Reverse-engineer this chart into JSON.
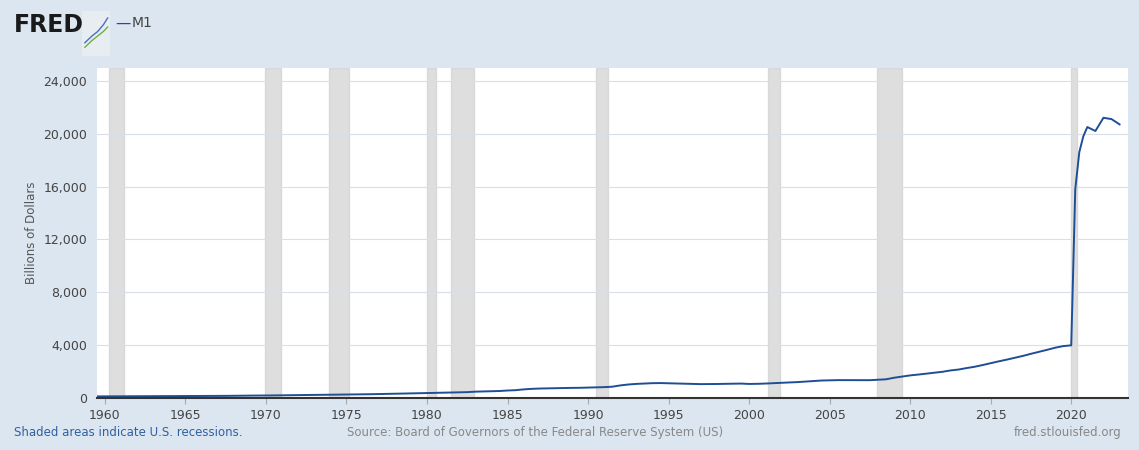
{
  "title": "M1",
  "fred_label": "FRED",
  "ylabel": "Billions of Dollars",
  "background_color": "#dce6f0",
  "plot_bg_color": "#ffffff",
  "line_color": "#1f4e96",
  "line_width": 1.4,
  "recession_color": "#d0d0d0",
  "recession_alpha": 0.7,
  "ylim": [
    0,
    25000
  ],
  "yticks": [
    0,
    4000,
    8000,
    12000,
    16000,
    20000,
    24000
  ],
  "xlim_start": 1959.5,
  "xlim_end": 2023.5,
  "xticks": [
    1960,
    1965,
    1970,
    1975,
    1980,
    1985,
    1990,
    1995,
    2000,
    2005,
    2010,
    2015,
    2020
  ],
  "footer_left": "Shaded areas indicate U.S. recessions.",
  "footer_center": "Source: Board of Governors of the Federal Reserve System (US)",
  "footer_right": "fred.stlouisfed.org",
  "footer_left_color": "#3060a0",
  "footer_center_color": "#888888",
  "footer_right_color": "#888888",
  "recession_periods": [
    [
      1960.25,
      1961.17
    ],
    [
      1969.92,
      1970.92
    ],
    [
      1973.92,
      1975.17
    ],
    [
      1980.0,
      1980.58
    ],
    [
      1981.5,
      1982.92
    ],
    [
      1990.5,
      1991.25
    ],
    [
      2001.17,
      2001.92
    ],
    [
      2007.92,
      2009.5
    ],
    [
      2020.0,
      2020.33
    ]
  ],
  "m1_data": {
    "years": [
      1959.0,
      1959.5,
      1960.0,
      1960.5,
      1961.0,
      1961.5,
      1962.0,
      1962.5,
      1963.0,
      1963.5,
      1964.0,
      1964.5,
      1965.0,
      1965.5,
      1966.0,
      1966.5,
      1967.0,
      1967.5,
      1968.0,
      1968.5,
      1969.0,
      1969.5,
      1970.0,
      1970.5,
      1971.0,
      1971.5,
      1972.0,
      1972.5,
      1973.0,
      1973.5,
      1974.0,
      1974.5,
      1975.0,
      1975.5,
      1976.0,
      1976.5,
      1977.0,
      1977.5,
      1978.0,
      1978.5,
      1979.0,
      1979.5,
      1980.0,
      1980.5,
      1981.0,
      1981.5,
      1982.0,
      1982.5,
      1983.0,
      1983.5,
      1984.0,
      1984.5,
      1985.0,
      1985.5,
      1986.0,
      1986.5,
      1987.0,
      1987.5,
      1988.0,
      1988.5,
      1989.0,
      1989.5,
      1990.0,
      1990.5,
      1991.0,
      1991.5,
      1992.0,
      1992.5,
      1993.0,
      1993.5,
      1994.0,
      1994.5,
      1995.0,
      1995.5,
      1996.0,
      1996.5,
      1997.0,
      1997.5,
      1998.0,
      1998.5,
      1999.0,
      1999.5,
      2000.0,
      2000.5,
      2001.0,
      2001.5,
      2002.0,
      2002.5,
      2003.0,
      2003.5,
      2004.0,
      2004.5,
      2005.0,
      2005.5,
      2006.0,
      2006.5,
      2007.0,
      2007.5,
      2008.0,
      2008.5,
      2009.0,
      2009.5,
      2010.0,
      2010.5,
      2011.0,
      2011.5,
      2012.0,
      2012.5,
      2013.0,
      2013.5,
      2014.0,
      2014.5,
      2015.0,
      2015.5,
      2016.0,
      2016.5,
      2017.0,
      2017.5,
      2018.0,
      2018.5,
      2019.0,
      2019.5,
      2020.0,
      2020.25,
      2020.5,
      2020.75,
      2021.0,
      2021.5,
      2022.0,
      2022.5,
      2023.0
    ],
    "values": [
      138,
      140,
      142,
      144,
      146,
      148,
      149,
      150,
      152,
      154,
      157,
      159,
      162,
      165,
      168,
      171,
      175,
      180,
      188,
      194,
      200,
      203,
      210,
      215,
      222,
      228,
      240,
      248,
      257,
      261,
      268,
      273,
      282,
      289,
      298,
      305,
      316,
      325,
      342,
      354,
      370,
      380,
      392,
      408,
      422,
      432,
      448,
      462,
      498,
      515,
      536,
      548,
      585,
      610,
      670,
      710,
      735,
      745,
      760,
      775,
      784,
      790,
      808,
      818,
      840,
      872,
      970,
      1040,
      1085,
      1110,
      1140,
      1147,
      1130,
      1116,
      1088,
      1082,
      1068,
      1070,
      1078,
      1088,
      1100,
      1110,
      1080,
      1090,
      1110,
      1140,
      1165,
      1195,
      1220,
      1260,
      1305,
      1340,
      1358,
      1370,
      1368,
      1370,
      1360,
      1366,
      1395,
      1432,
      1550,
      1635,
      1728,
      1790,
      1862,
      1940,
      2000,
      2100,
      2170,
      2280,
      2380,
      2510,
      2650,
      2790,
      2920,
      3060,
      3200,
      3360,
      3510,
      3660,
      3820,
      3940,
      4000,
      15800,
      18600,
      19800,
      20500,
      20200,
      21200,
      21100,
      20700
    ]
  }
}
